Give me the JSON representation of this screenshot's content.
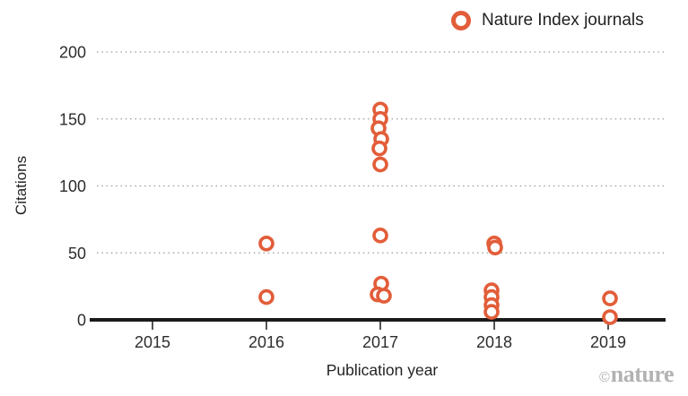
{
  "legend": {
    "label": "Nature Index journals"
  },
  "y_axis": {
    "title": "Citations"
  },
  "x_axis": {
    "title": "Publication year"
  },
  "branding": {
    "copyright": "©",
    "name": "nature"
  },
  "colors": {
    "marker": "#e25d39",
    "axis": "#1a1a1a",
    "grid": "#9a9a9a",
    "tick_text": "#2d2d2d",
    "branding": "#b2b2b2"
  },
  "chart_data": {
    "type": "scatter",
    "title": "",
    "xlabel": "Publication year",
    "ylabel": "Citations",
    "x_ticks": [
      2015,
      2016,
      2017,
      2018,
      2019
    ],
    "y_ticks": [
      0,
      50,
      100,
      150,
      200
    ],
    "xlim": [
      2014.5,
      2019.5
    ],
    "ylim": [
      0,
      215
    ],
    "grid": "horizontal-dotted",
    "legend_position": "top-right",
    "marker_style": "open-circle",
    "series": [
      {
        "name": "Nature Index journals",
        "color": "#e25d39",
        "points": [
          {
            "year": 2016,
            "citations": 57,
            "dx": 0
          },
          {
            "year": 2016,
            "citations": 17,
            "dx": 0
          },
          {
            "year": 2017,
            "citations": 157,
            "dx": 0
          },
          {
            "year": 2017,
            "citations": 150,
            "dx": 0
          },
          {
            "year": 2017,
            "citations": 143,
            "dx": -2
          },
          {
            "year": 2017,
            "citations": 135,
            "dx": 1
          },
          {
            "year": 2017,
            "citations": 128,
            "dx": -1
          },
          {
            "year": 2017,
            "citations": 116,
            "dx": 0
          },
          {
            "year": 2017,
            "citations": 63,
            "dx": 0
          },
          {
            "year": 2017,
            "citations": 27,
            "dx": 1
          },
          {
            "year": 2017,
            "citations": 19,
            "dx": -3
          },
          {
            "year": 2017,
            "citations": 18,
            "dx": 4
          },
          {
            "year": 2018,
            "citations": 57,
            "dx": 0
          },
          {
            "year": 2018,
            "citations": 54,
            "dx": 1
          },
          {
            "year": 2018,
            "citations": 22,
            "dx": -3
          },
          {
            "year": 2018,
            "citations": 17,
            "dx": -3
          },
          {
            "year": 2018,
            "citations": 11,
            "dx": -3
          },
          {
            "year": 2018,
            "citations": 6,
            "dx": -3
          },
          {
            "year": 2019,
            "citations": 16,
            "dx": 2
          },
          {
            "year": 2019,
            "citations": 2,
            "dx": 2
          }
        ]
      }
    ]
  }
}
